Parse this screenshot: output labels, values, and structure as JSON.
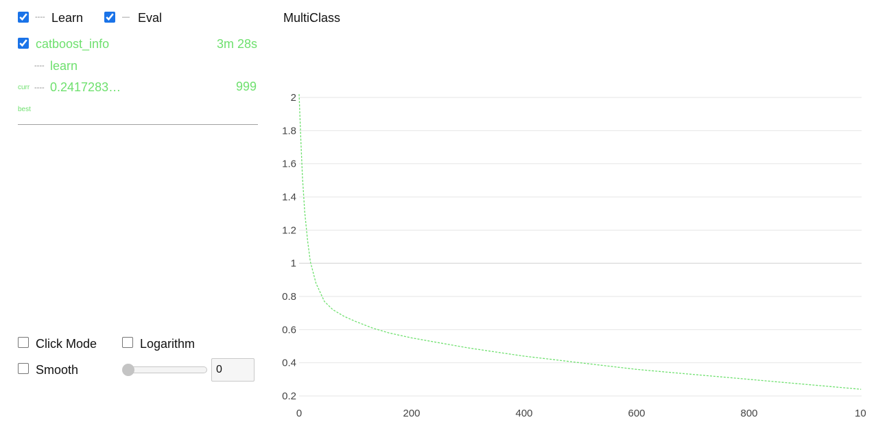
{
  "toggles": {
    "learn_label": "Learn",
    "learn_checked": true,
    "eval_label": "Eval",
    "eval_checked": true
  },
  "run": {
    "name": "catboost_info",
    "time": "3m 28s",
    "checked": true,
    "metric_set": "learn",
    "curr_label": "curr",
    "curr_value": "0.2417283…",
    "curr_iter": "999",
    "best_label": "best"
  },
  "controls": {
    "click_mode_label": "Click Mode",
    "logarithm_label": "Logarithm",
    "smooth_label": "Smooth",
    "smooth_value": "0",
    "smooth_fraction": 0
  },
  "colors": {
    "series": "#6ee06e",
    "grid": "#e6e6e6"
  },
  "chart_data": {
    "type": "line",
    "title": "MultiClass",
    "xlabel": "",
    "ylabel": "",
    "xlim": [
      0,
      1000
    ],
    "ylim": [
      0.2,
      2.05
    ],
    "grid": true,
    "x_ticks": [
      "0",
      "200",
      "400",
      "600",
      "800",
      "10"
    ],
    "y_ticks": [
      "2",
      "1.8",
      "1.6",
      "1.4",
      "1.2",
      "1",
      "0.8",
      "0.6",
      "0.4",
      "0.2"
    ],
    "series": [
      {
        "line_style": "dashed",
        "color": "#6ee06e",
        "x": [
          0,
          3,
          6,
          10,
          15,
          20,
          30,
          45,
          60,
          80,
          100,
          130,
          160,
          200,
          250,
          300,
          350,
          400,
          450,
          500,
          550,
          600,
          650,
          700,
          750,
          800,
          850,
          900,
          950,
          999
        ],
        "y": [
          2.02,
          1.75,
          1.52,
          1.31,
          1.14,
          1.01,
          0.88,
          0.77,
          0.72,
          0.68,
          0.65,
          0.61,
          0.58,
          0.55,
          0.52,
          0.49,
          0.465,
          0.44,
          0.42,
          0.4,
          0.38,
          0.36,
          0.345,
          0.33,
          0.315,
          0.3,
          0.285,
          0.27,
          0.255,
          0.24
        ]
      }
    ]
  }
}
